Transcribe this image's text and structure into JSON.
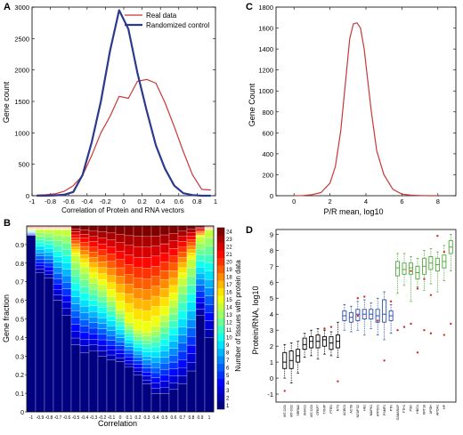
{
  "panels": {
    "A": "A",
    "B": "B",
    "C": "C",
    "D": "D"
  },
  "chart_data": [
    {
      "type": "line",
      "panel": "A",
      "xlabel": "Correlation of Protein and RNA vectors",
      "ylabel": "Gene count",
      "xlim": [
        -1,
        1
      ],
      "ylim": [
        0,
        3000
      ],
      "xticks": [
        -1,
        -0.8,
        -0.6,
        -0.4,
        -0.2,
        0,
        0.2,
        0.4,
        0.6,
        0.8,
        1
      ],
      "yticks": [
        0,
        500,
        1000,
        1500,
        2000,
        2500,
        3000
      ],
      "legend": {
        "position": "top-right",
        "entries": [
          "Real data",
          "Randomized control"
        ]
      },
      "series": [
        {
          "name": "Real data",
          "color": "#c83737",
          "width": 1.2,
          "x": [
            -0.95,
            -0.85,
            -0.75,
            -0.65,
            -0.55,
            -0.45,
            -0.35,
            -0.25,
            -0.15,
            -0.05,
            0.05,
            0.15,
            0.25,
            0.35,
            0.45,
            0.55,
            0.65,
            0.75,
            0.85,
            0.95
          ],
          "y": [
            10,
            15,
            30,
            70,
            160,
            320,
            640,
            1000,
            1260,
            1580,
            1550,
            1820,
            1850,
            1790,
            1480,
            1100,
            700,
            330,
            100,
            90
          ]
        },
        {
          "name": "Randomized control",
          "color": "#2b3a8c",
          "width": 2.2,
          "x": [
            -0.95,
            -0.85,
            -0.75,
            -0.65,
            -0.55,
            -0.45,
            -0.35,
            -0.25,
            -0.15,
            -0.05,
            0.05,
            0.15,
            0.25,
            0.35,
            0.45,
            0.55,
            0.65,
            0.75,
            0.85,
            0.95
          ],
          "y": [
            0,
            0,
            5,
            15,
            60,
            330,
            850,
            1500,
            2300,
            2950,
            2650,
            1950,
            1350,
            800,
            430,
            160,
            40,
            10,
            0,
            0
          ]
        }
      ]
    },
    {
      "type": "line",
      "panel": "C",
      "xlabel": "P/R mean, log10",
      "ylabel": "Gene Count",
      "xlim": [
        -1,
        9
      ],
      "ylim": [
        0,
        1800
      ],
      "xticks": [
        0,
        2,
        4,
        6,
        8
      ],
      "yticks": [
        0,
        200,
        400,
        600,
        800,
        1000,
        1200,
        1400,
        1600,
        1800
      ],
      "series": [
        {
          "color": "#c83737",
          "width": 1.2,
          "x": [
            0,
            0.5,
            1.0,
            1.5,
            2.0,
            2.3,
            2.6,
            2.9,
            3.1,
            3.3,
            3.5,
            3.7,
            3.9,
            4.1,
            4.3,
            4.6,
            5.0,
            5.5,
            6.0,
            6.5,
            7.0,
            7.5,
            8.0
          ],
          "y": [
            0,
            2,
            10,
            30,
            120,
            280,
            620,
            1150,
            1500,
            1640,
            1650,
            1600,
            1400,
            1100,
            800,
            430,
            200,
            60,
            15,
            5,
            2,
            0,
            0
          ]
        }
      ]
    },
    {
      "type": "stacked-bar",
      "panel": "B",
      "xlabel": "Correlation",
      "ylabel": "Gene fraction",
      "colorbar_label": "Number of tissues with protein data",
      "yticks": [
        0,
        0.1,
        0.2,
        0.3,
        0.4,
        0.5,
        0.6,
        0.7,
        0.8,
        0.9
      ],
      "colorbar_ticks": [
        1,
        2,
        3,
        4,
        5,
        6,
        7,
        8,
        9,
        10,
        11,
        12,
        13,
        14,
        15,
        16,
        17,
        18,
        19,
        20,
        21,
        22,
        23,
        24
      ],
      "categories": [
        "-1",
        "-0.9",
        "-0.8",
        "-0.7",
        "-0.6",
        "-0.5",
        "-0.4",
        "-0.3",
        "-0.2",
        "-0.1",
        "0",
        "0.1",
        "0.2",
        "0.3",
        "0.4",
        "0.5",
        "0.6",
        "0.7",
        "0.8",
        "0.9",
        "1"
      ],
      "boundaries_dark": [
        0.95,
        0.75,
        0.72,
        0.6,
        0.52,
        0.36,
        0.32,
        0.33,
        0.3,
        0.28,
        0.27,
        0.24,
        0.2,
        0.15,
        0.1,
        0.1,
        0.12,
        0.15,
        0.22,
        0.52,
        0.4
      ],
      "boundaries_yellow": [
        0.98,
        0.98,
        0.98,
        0.98,
        0.98,
        0.84,
        0.78,
        0.72,
        0.68,
        0.62,
        0.55,
        0.48,
        0.44,
        0.43,
        0.46,
        0.52,
        0.6,
        0.72,
        0.82,
        0.94,
        0.98
      ]
    },
    {
      "type": "box",
      "panel": "D",
      "ylabel": "Protein/RNA, log10",
      "ylim": [
        -1.5,
        9.3
      ],
      "yticks": [
        -1,
        0,
        1,
        2,
        3,
        4,
        5,
        6,
        7,
        8,
        9
      ],
      "categories": [
        "MT-CO1",
        "MT-CO2",
        "SRRM2",
        "SNHG1",
        "MT-CO3",
        "GFBP7",
        "TXNIP",
        "PTEN",
        "NTS",
        "ACBD3",
        "ACTB",
        "NDUFS2",
        "HB1",
        "MAPK1",
        "ATP6V1",
        "PSMF1",
        "PTN",
        "GABARAP",
        "FTH1",
        "PSD",
        "HBG1",
        "KRT18",
        "APOH",
        "APOA1",
        "HP"
      ],
      "groups": [
        {
          "color": "#000000",
          "items": [
            {
              "q1": 0.6,
              "med": 1.0,
              "q3": 1.6,
              "lo": 0.0,
              "hi": 2.1
            },
            {
              "q1": 0.6,
              "med": 1.1,
              "q3": 1.7,
              "lo": -0.3,
              "hi": 2.2
            },
            {
              "q1": 1.0,
              "med": 1.4,
              "q3": 1.8,
              "lo": 0.3,
              "hi": 2.3
            },
            {
              "q1": 1.8,
              "med": 2.1,
              "q3": 2.5,
              "lo": 1.3,
              "hi": 2.8
            },
            {
              "q1": 1.9,
              "med": 2.3,
              "q3": 2.6,
              "lo": 1.4,
              "hi": 3.0
            },
            {
              "q1": 1.9,
              "med": 2.3,
              "q3": 2.7,
              "lo": 1.2,
              "hi": 3.1
            },
            {
              "q1": 2.0,
              "med": 2.4,
              "q3": 2.6,
              "lo": 1.5,
              "hi": 3.0
            },
            {
              "q1": 1.8,
              "med": 2.2,
              "q3": 2.6,
              "lo": 1.4,
              "hi": 2.9
            },
            {
              "q1": 1.9,
              "med": 2.3,
              "q3": 2.7,
              "lo": 1.3,
              "hi": 3.5
            }
          ]
        },
        {
          "color": "#2c4fa8",
          "items": [
            {
              "q1": 3.6,
              "med": 3.9,
              "q3": 4.2,
              "lo": 3.0,
              "hi": 4.6
            },
            {
              "q1": 3.5,
              "med": 3.8,
              "q3": 4.1,
              "lo": 2.9,
              "hi": 4.5
            },
            {
              "q1": 3.6,
              "med": 4.0,
              "q3": 4.3,
              "lo": 3.0,
              "hi": 4.8
            },
            {
              "q1": 3.7,
              "med": 4.0,
              "q3": 4.3,
              "lo": 2.7,
              "hi": 4.9
            },
            {
              "q1": 3.7,
              "med": 4.0,
              "q3": 4.3,
              "lo": 3.1,
              "hi": 4.7
            },
            {
              "q1": 3.5,
              "med": 3.9,
              "q3": 4.3,
              "lo": 2.7,
              "hi": 5.0
            },
            {
              "q1": 3.5,
              "med": 4.0,
              "q3": 4.9,
              "lo": 2.4,
              "hi": 5.4
            },
            {
              "q1": 3.6,
              "med": 3.9,
              "q3": 4.2,
              "lo": 2.8,
              "hi": 4.6
            }
          ]
        },
        {
          "color": "#4fa83a",
          "items": [
            {
              "q1": 6.4,
              "med": 6.9,
              "q3": 7.3,
              "lo": 5.3,
              "hi": 7.8
            },
            {
              "q1": 6.5,
              "med": 6.8,
              "q3": 7.2,
              "lo": 5.8,
              "hi": 7.8
            },
            {
              "q1": 6.5,
              "med": 6.9,
              "q3": 7.2,
              "lo": 4.8,
              "hi": 7.6
            },
            {
              "q1": 6.2,
              "med": 6.6,
              "q3": 7.0,
              "lo": 5.7,
              "hi": 7.5
            },
            {
              "q1": 6.5,
              "med": 7.0,
              "q3": 7.5,
              "lo": 5.5,
              "hi": 8.0
            },
            {
              "q1": 6.8,
              "med": 7.2,
              "q3": 7.6,
              "lo": 5.9,
              "hi": 8.1
            },
            {
              "q1": 6.7,
              "med": 7.1,
              "q3": 7.5,
              "lo": 5.4,
              "hi": 7.9
            },
            {
              "q1": 6.9,
              "med": 7.3,
              "q3": 7.7,
              "lo": 6.1,
              "hi": 8.3
            },
            {
              "q1": 7.8,
              "med": 8.2,
              "q3": 8.6,
              "lo": 6.7,
              "hi": 9.0
            }
          ]
        }
      ],
      "outliers": [
        [
          0,
          -0.8
        ],
        [
          8,
          -0.2
        ],
        [
          11,
          3.9
        ],
        [
          14,
          3.6
        ],
        [
          15,
          1.1
        ],
        [
          20,
          1.6
        ],
        [
          11,
          5.0
        ],
        [
          12,
          5.1
        ],
        [
          17,
          3.0
        ],
        [
          18,
          3.2
        ],
        [
          19,
          6.7
        ],
        [
          20,
          5.6
        ],
        [
          21,
          3.0
        ],
        [
          22,
          2.8
        ],
        [
          23,
          8.9
        ],
        [
          24,
          2.7
        ],
        [
          25,
          3.4
        ],
        [
          19,
          3.4
        ],
        [
          6,
          3.1
        ],
        [
          7,
          3.2
        ],
        [
          16,
          4.8
        ],
        [
          21,
          6.2
        ],
        [
          24,
          7.9
        ],
        [
          22,
          5.2
        ]
      ]
    }
  ]
}
